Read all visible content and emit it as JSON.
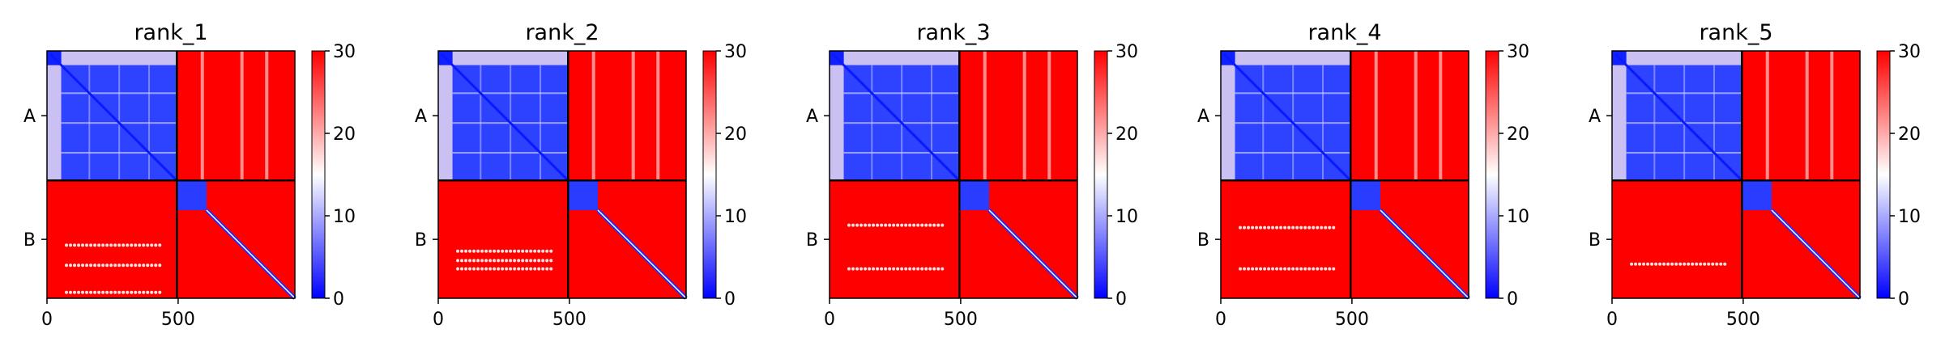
{
  "chart_data": {
    "type": "heatmap",
    "panels": [
      {
        "title": "rank_1",
        "offdiag_AB": "red",
        "offdiag_BA": "red",
        "A_inner_strength": 0.85,
        "speckle_rows": [
          0.55,
          0.72,
          0.95
        ]
      },
      {
        "title": "rank_2",
        "offdiag_AB": "red",
        "offdiag_BA": "red",
        "A_inner_strength": 0.7,
        "speckle_rows": [
          0.6,
          0.68,
          0.75
        ]
      },
      {
        "title": "rank_3",
        "offdiag_AB": "red",
        "offdiag_BA": "red",
        "A_inner_strength": 0.85,
        "speckle_rows": [
          0.38,
          0.75
        ]
      },
      {
        "title": "rank_4",
        "offdiag_AB": "red",
        "offdiag_BA": "red",
        "A_inner_strength": 0.9,
        "speckle_rows": [
          0.4,
          0.75
        ]
      },
      {
        "title": "rank_5",
        "offdiag_AB": "red",
        "offdiag_BA": "red",
        "A_inner_strength": 0.9,
        "speckle_rows": [
          0.71
        ]
      }
    ],
    "x_ticks": [
      0,
      500
    ],
    "x_range": [
      0,
      945
    ],
    "chain_boundary": 495,
    "y_tick_labels": [
      "A",
      "B"
    ],
    "colorbar": {
      "min": 0,
      "max": 30,
      "ticks": [
        0,
        10,
        20,
        30
      ],
      "colormap": "bwr",
      "colors": {
        "low": "#0000ff",
        "mid": "#ffffff",
        "high": "#ff0000"
      }
    }
  }
}
